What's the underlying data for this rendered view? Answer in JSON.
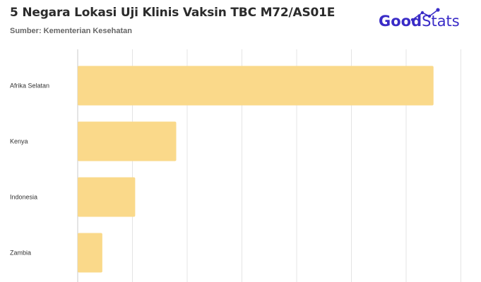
{
  "header": {
    "title": "5 Negara Lokasi Uji Klinis Vaksin TBC M72/AS01E",
    "source": "Sumber: Kementerian Kesehatan"
  },
  "logo": {
    "good": "Good",
    "stats": "Stats",
    "brand_color": "#3a2cc7"
  },
  "colors": {
    "bar": "#fad98a",
    "grid": "#e4e4e4",
    "axis": "#c8c8c8"
  },
  "chart_data": {
    "type": "bar",
    "orientation": "horizontal",
    "categories": [
      "Afrika Selatan",
      "Kenya",
      "Indonesia",
      "Zambia"
    ],
    "values": [
      6.5,
      1.8,
      1.05,
      0.45
    ],
    "xlim": [
      0,
      7
    ],
    "grid": true
  }
}
